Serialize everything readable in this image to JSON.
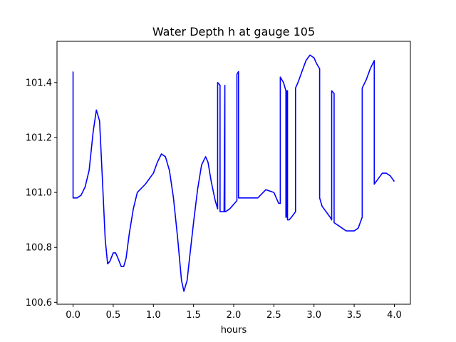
{
  "chart_data": {
    "type": "line",
    "title": "Water Depth h at gauge 105",
    "xlabel": "hours",
    "ylabel": "",
    "xlim": [
      -0.2,
      4.2
    ],
    "ylim": [
      100.593,
      101.55
    ],
    "xticks": [
      0.0,
      0.5,
      1.0,
      1.5,
      2.0,
      2.5,
      3.0,
      3.5,
      4.0
    ],
    "xtick_labels": [
      "0.0",
      "0.5",
      "1.0",
      "1.5",
      "2.0",
      "2.5",
      "3.0",
      "3.5",
      "4.0"
    ],
    "yticks": [
      100.6,
      100.8,
      101.0,
      101.2,
      101.4
    ],
    "ytick_labels": [
      "100.6",
      "100.8",
      "101.0",
      "101.2",
      "101.4"
    ],
    "grid": false,
    "series": [
      {
        "color": "#0000ff",
        "x": [
          0.0,
          0.0,
          0.05,
          0.1,
          0.15,
          0.2,
          0.25,
          0.29,
          0.33,
          0.36,
          0.4,
          0.43,
          0.46,
          0.5,
          0.53,
          0.56,
          0.6,
          0.63,
          0.66,
          0.7,
          0.75,
          0.8,
          0.9,
          1.0,
          1.05,
          1.1,
          1.15,
          1.2,
          1.25,
          1.3,
          1.35,
          1.38,
          1.42,
          1.45,
          1.5,
          1.55,
          1.6,
          1.65,
          1.68,
          1.72,
          1.77,
          1.8,
          1.8,
          1.83,
          1.83,
          1.88,
          1.89,
          1.89,
          1.9,
          1.95,
          2.04,
          2.04,
          2.06,
          2.06,
          2.08,
          2.1,
          2.2,
          2.3,
          2.4,
          2.5,
          2.56,
          2.58,
          2.58,
          2.62,
          2.65,
          2.65,
          2.66,
          2.66,
          2.67,
          2.67,
          2.69,
          2.72,
          2.77,
          2.77,
          2.8,
          2.85,
          2.9,
          2.95,
          3.0,
          3.03,
          3.07,
          3.07,
          3.1,
          3.15,
          3.2,
          3.22,
          3.22,
          3.25,
          3.25,
          3.3,
          3.35,
          3.4,
          3.45,
          3.5,
          3.55,
          3.6,
          3.6,
          3.65,
          3.7,
          3.75,
          3.75,
          3.8,
          3.85,
          3.9,
          3.95,
          4.0
        ],
        "y": [
          101.44,
          100.98,
          100.98,
          100.99,
          101.02,
          101.08,
          101.22,
          101.3,
          101.26,
          101.08,
          100.83,
          100.74,
          100.75,
          100.78,
          100.78,
          100.76,
          100.73,
          100.73,
          100.76,
          100.85,
          100.94,
          101.0,
          101.03,
          101.07,
          101.11,
          101.14,
          101.13,
          101.08,
          100.98,
          100.84,
          100.68,
          100.64,
          100.68,
          100.76,
          100.89,
          101.01,
          101.1,
          101.13,
          101.11,
          101.04,
          100.97,
          100.94,
          101.4,
          101.39,
          100.93,
          100.93,
          101.39,
          100.93,
          100.93,
          100.94,
          100.97,
          101.43,
          101.44,
          100.98,
          100.98,
          100.98,
          100.98,
          100.98,
          101.01,
          101.0,
          100.96,
          100.96,
          101.42,
          101.4,
          101.37,
          100.91,
          100.91,
          101.37,
          101.37,
          100.9,
          100.9,
          100.91,
          100.93,
          101.38,
          101.4,
          101.44,
          101.48,
          101.5,
          101.49,
          101.47,
          101.45,
          100.98,
          100.95,
          100.93,
          100.91,
          100.9,
          101.37,
          101.36,
          100.89,
          100.88,
          100.87,
          100.86,
          100.86,
          100.86,
          100.87,
          100.91,
          101.38,
          101.41,
          101.45,
          101.48,
          101.03,
          101.05,
          101.07,
          101.07,
          101.06,
          101.04
        ]
      }
    ]
  }
}
